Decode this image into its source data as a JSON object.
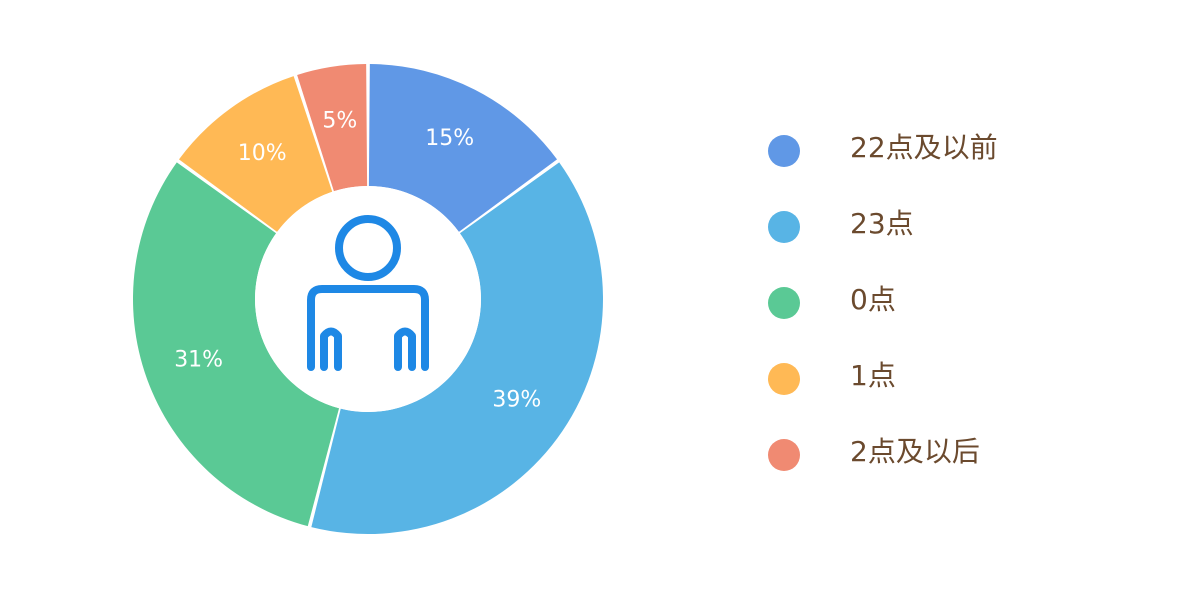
{
  "colors": {
    "label_text": "#ffffff",
    "legend_text": "#6b4a2e",
    "person_icon": "#1e88e5",
    "center_fill": "#ffffff"
  },
  "center_icon": "person-icon",
  "chart_data": {
    "type": "pie",
    "donut": true,
    "categories": [
      "22点及以前",
      "23点",
      "0点",
      "1点",
      "2点及以后"
    ],
    "values": [
      15,
      39,
      31,
      10,
      5
    ],
    "labels": [
      "15%",
      "39%",
      "31%",
      "10%",
      "5%"
    ],
    "colors": [
      "#6098e6",
      "#58b4e5",
      "#5ac995",
      "#ffb955",
      "#f08a72"
    ],
    "legend_position": "right",
    "start_angle_degrees": 0,
    "direction": "clockwise"
  }
}
